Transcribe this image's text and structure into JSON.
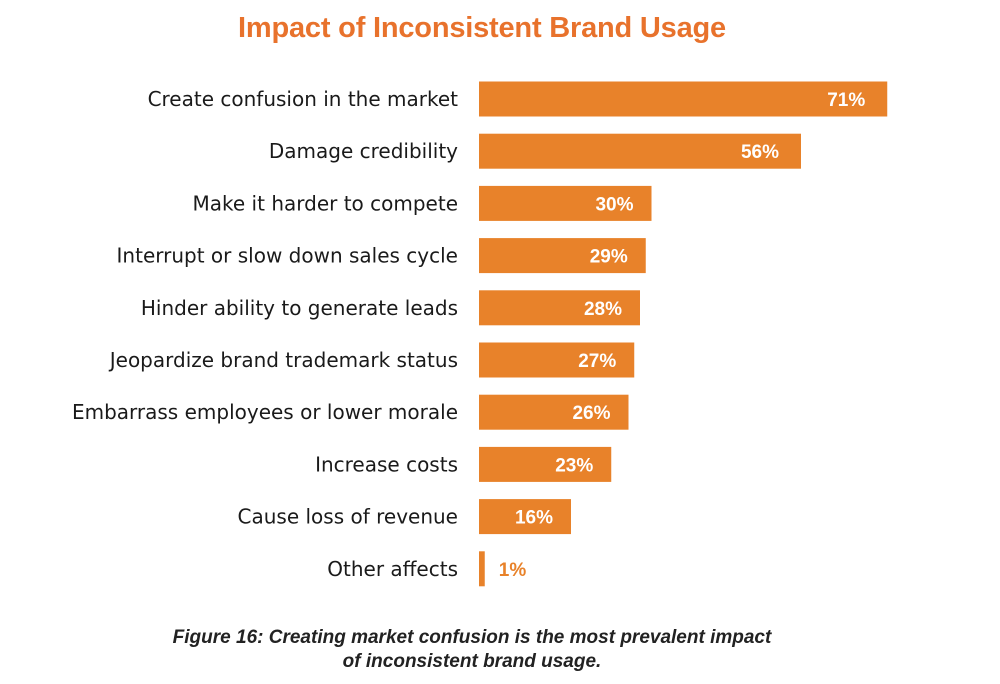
{
  "chart_data": {
    "type": "bar",
    "orientation": "horizontal",
    "title": "Impact of Inconsistent Brand Usage",
    "categories": [
      "Create confusion in the market",
      "Damage credibility",
      "Make it harder to compete",
      "Interrupt or slow down sales cycle",
      "Hinder ability to generate leads",
      "Jeopardize brand trademark status",
      "Embarrass employees or lower morale",
      "Increase costs",
      "Cause loss of revenue",
      "Other affects"
    ],
    "values": [
      71,
      56,
      30,
      29,
      28,
      27,
      26,
      23,
      16,
      1
    ],
    "value_labels": [
      "71%",
      "56%",
      "30%",
      "29%",
      "28%",
      "27%",
      "26%",
      "23%",
      "16%",
      "1%"
    ],
    "xlabel": "",
    "ylabel": "",
    "grid": false,
    "legend": "none",
    "colors": {
      "bar": "#E8822A",
      "title": "#E8722C",
      "label_inside": "#ffffff",
      "label_outside": "#E8822A"
    }
  },
  "caption": {
    "line1": "Figure 16: Creating market confusion is the most prevalent impact",
    "line2": "of inconsistent brand usage."
  }
}
